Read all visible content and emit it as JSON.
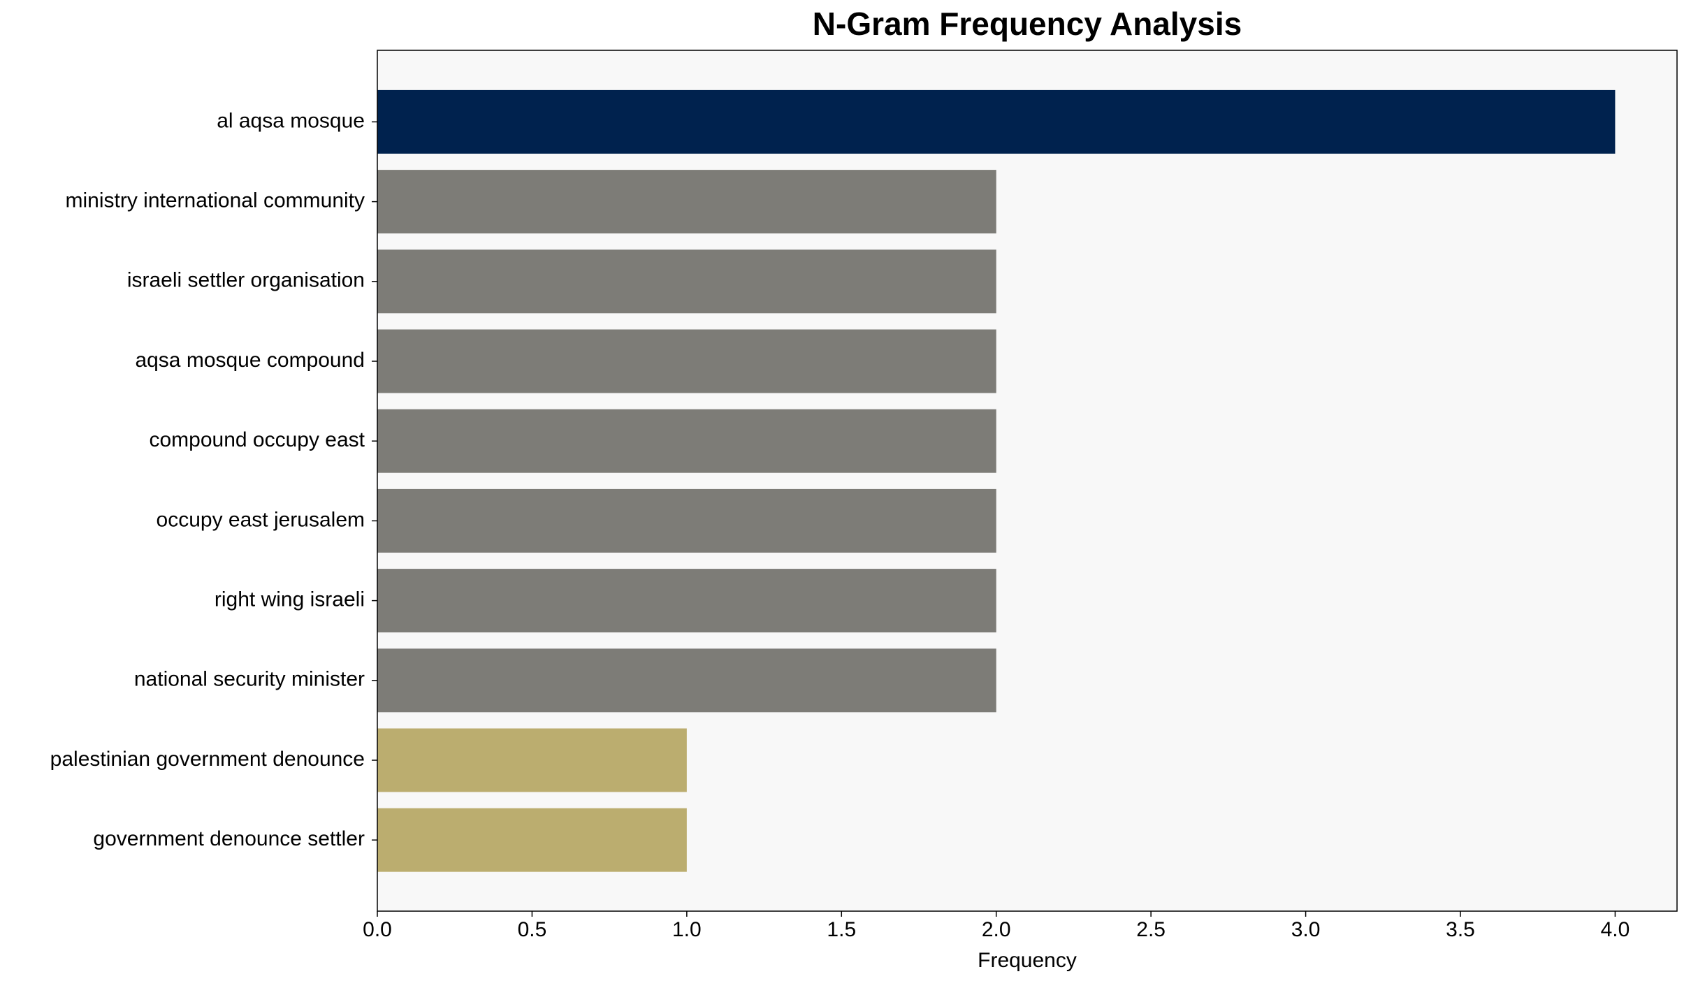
{
  "chart_data": {
    "type": "barh",
    "title": "N-Gram Frequency Analysis",
    "x_label": "Frequency",
    "categories": [
      "al aqsa mosque",
      "ministry international community",
      "israeli settler organisation",
      "aqsa mosque compound",
      "compound occupy east",
      "occupy east jerusalem",
      "right wing israeli",
      "national security minister",
      "palestinian government denounce",
      "government denounce settler"
    ],
    "values": [
      4,
      2,
      2,
      2,
      2,
      2,
      2,
      2,
      1,
      1
    ],
    "colors": [
      "#00224e",
      "#7d7c77",
      "#7d7c77",
      "#7d7c77",
      "#7d7c77",
      "#7d7c77",
      "#7d7c77",
      "#7d7c77",
      "#bbad6f",
      "#bbad6f"
    ],
    "xlim": [
      0,
      4.2
    ],
    "xticks": [
      {
        "value": 0,
        "label": "0.0"
      },
      0.5,
      {
        "value": 1,
        "label": "1.0"
      },
      1.5,
      {
        "value": 2,
        "label": "2.0"
      },
      2.5,
      {
        "value": 3,
        "label": "3.0"
      },
      3.5,
      {
        "value": 4,
        "label": "4.0"
      }
    ],
    "grid": false
  }
}
